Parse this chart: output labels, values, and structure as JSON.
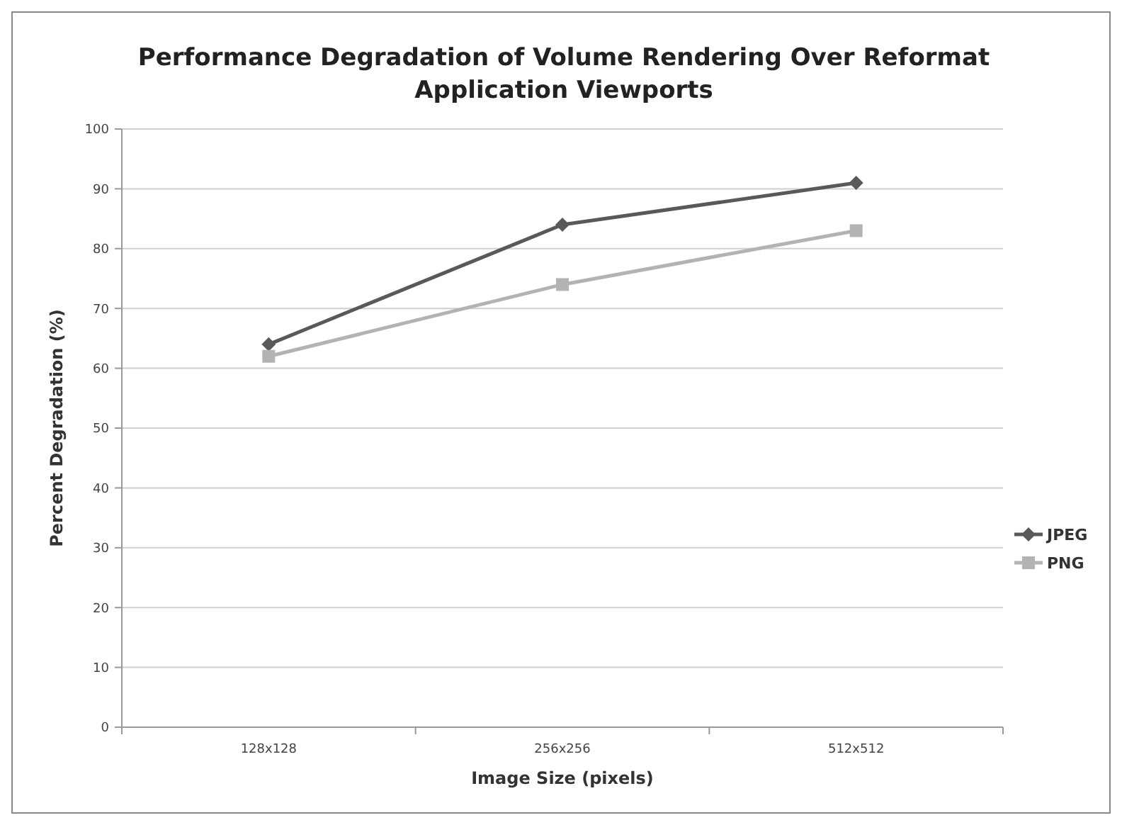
{
  "chart_data": {
    "type": "line",
    "title": "Performance Degradation of Volume Rendering Over Reformat Application Viewports",
    "xlabel": "Image Size (pixels)",
    "ylabel": "Percent Degradation (%)",
    "categories": [
      "128x128",
      "256x256",
      "512x512"
    ],
    "series": [
      {
        "name": "JPEG",
        "color": "#595959",
        "values": [
          64,
          84,
          91
        ],
        "marker": "diamond"
      },
      {
        "name": "PNG",
        "color": "#b3b3b3",
        "values": [
          62,
          74,
          83
        ],
        "marker": "square"
      }
    ],
    "ylim": [
      0,
      100
    ],
    "yticks": [
      0,
      10,
      20,
      30,
      40,
      50,
      60,
      70,
      80,
      90,
      100
    ],
    "grid": "y",
    "legend": "right"
  }
}
